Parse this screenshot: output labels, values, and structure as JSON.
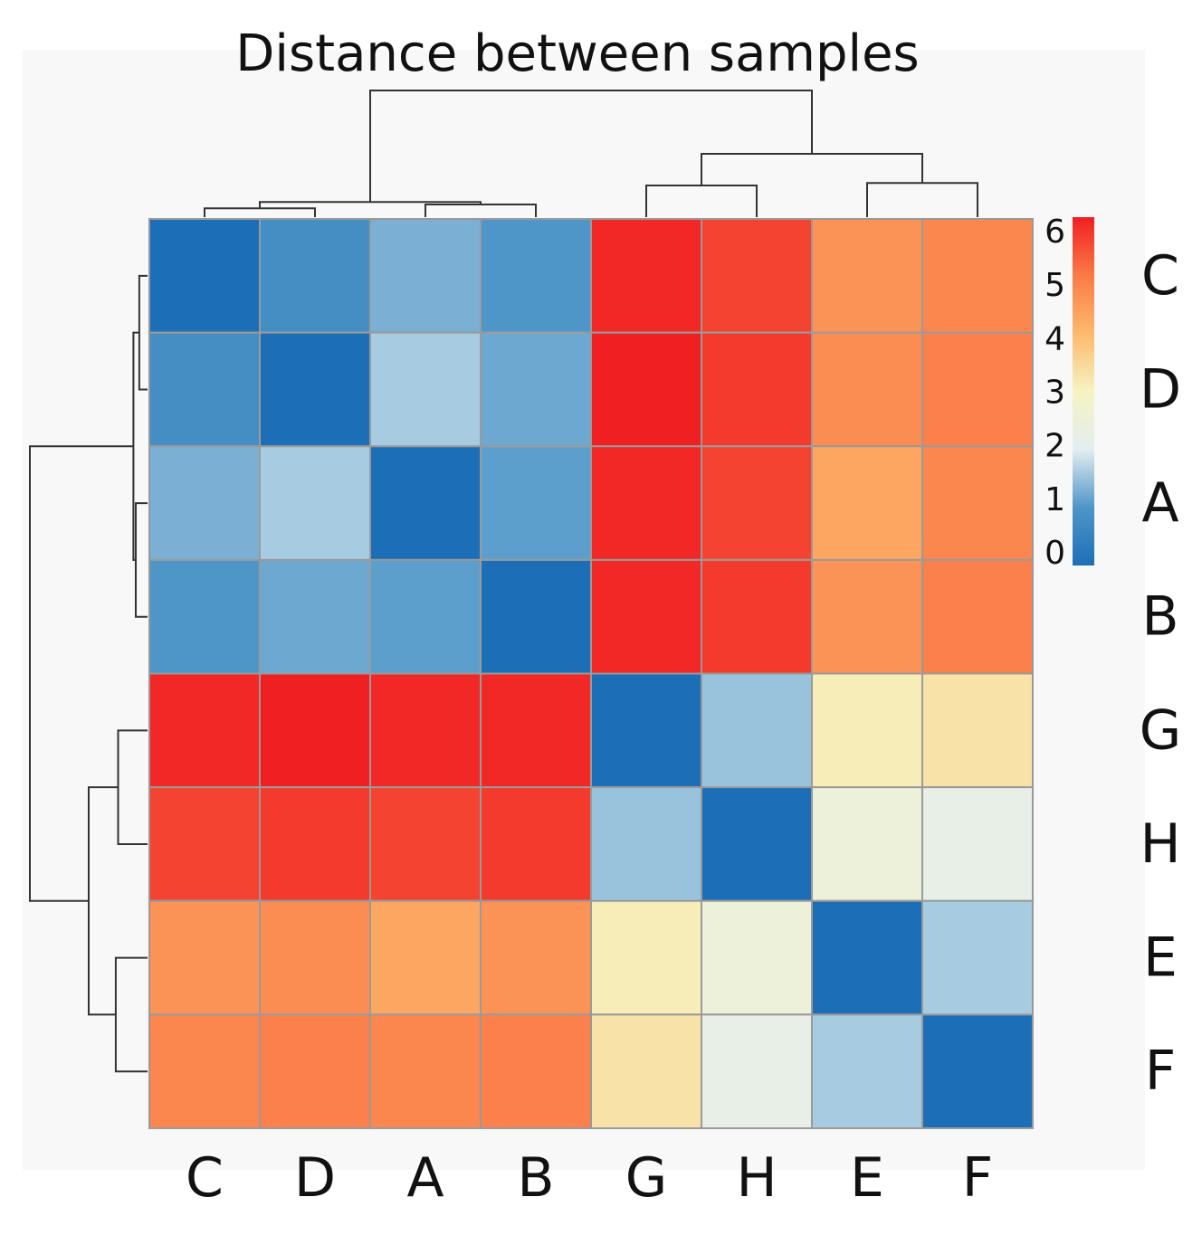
{
  "chart_data": {
    "type": "heatmap",
    "title": "Distance between samples",
    "labels": [
      "C",
      "D",
      "A",
      "B",
      "G",
      "H",
      "E",
      "F"
    ],
    "values": [
      [
        0.0,
        0.8,
        1.3,
        1.0,
        5.9,
        5.6,
        4.6,
        4.8
      ],
      [
        0.8,
        0.0,
        1.6,
        1.2,
        6.0,
        5.7,
        4.7,
        4.9
      ],
      [
        1.3,
        1.6,
        0.0,
        1.1,
        5.9,
        5.6,
        4.3,
        4.8
      ],
      [
        1.0,
        1.2,
        1.1,
        0.0,
        5.9,
        5.7,
        4.6,
        4.9
      ],
      [
        5.9,
        6.0,
        5.9,
        5.9,
        0.0,
        1.5,
        3.1,
        3.3
      ],
      [
        5.6,
        5.7,
        5.6,
        5.7,
        1.5,
        0.0,
        2.5,
        2.2
      ],
      [
        4.6,
        4.7,
        4.3,
        4.6,
        3.1,
        2.5,
        0.0,
        1.6
      ],
      [
        4.8,
        4.9,
        4.8,
        4.9,
        3.3,
        2.2,
        1.6,
        0.0
      ]
    ],
    "color_scale": {
      "min": 0,
      "max": 6,
      "ticks": [
        0,
        1,
        2,
        3,
        4,
        5,
        6
      ],
      "colors": [
        "#1c6fb6",
        "#4e96c8",
        "#e3eef0",
        "#f6f3c2",
        "#fdb96c",
        "#fb7a47",
        "#f01f22"
      ]
    },
    "legend_position": "right",
    "dendrogram": {
      "leaf_order": [
        "C",
        "D",
        "A",
        "B",
        "G",
        "H",
        "E",
        "F"
      ],
      "merges": [
        {
          "left": "C",
          "right": "D",
          "height": 0.07
        },
        {
          "left": "A",
          "right": "B",
          "height": 0.1
        },
        {
          "left": "CD",
          "right": "AB",
          "height": 0.12
        },
        {
          "left": "G",
          "right": "H",
          "height": 0.25
        },
        {
          "left": "E",
          "right": "F",
          "height": 0.27
        },
        {
          "left": "GH",
          "right": "EF",
          "height": 0.5
        },
        {
          "left": "CDAB",
          "right": "GHEF",
          "height": 1.0
        }
      ]
    }
  }
}
